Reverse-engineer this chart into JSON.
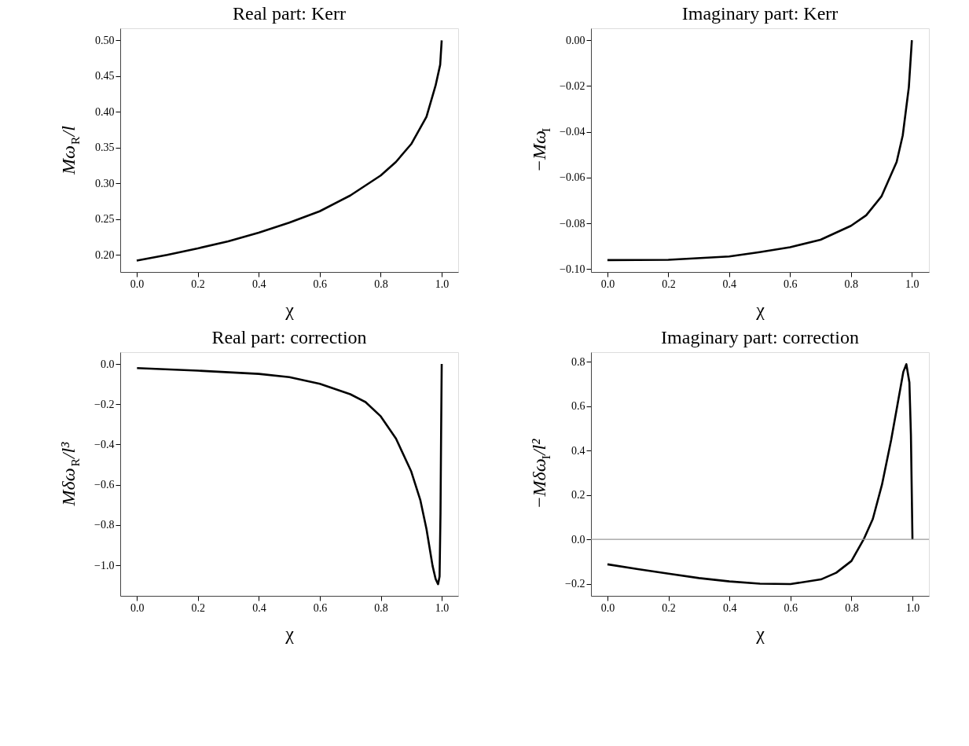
{
  "chart_data": [
    {
      "type": "line",
      "title": "Real part: Kerr",
      "xlabel": "χ",
      "ylabel": "Mω$_{R}$/l",
      "grid": false,
      "xlim": [
        -0.054,
        1.054
      ],
      "ylim": [
        0.176,
        0.517
      ],
      "xticks": [
        {
          "value": 0,
          "label": "0.0"
        },
        {
          "value": 0.2,
          "label": "0.2"
        },
        {
          "value": 0.4,
          "label": "0.4"
        },
        {
          "value": 0.6,
          "label": "0.6"
        },
        {
          "value": 0.8,
          "label": "0.8"
        },
        {
          "value": 1,
          "label": "1.0"
        }
      ],
      "yticks": [
        {
          "value": 0.2,
          "label": "0.20"
        },
        {
          "value": 0.25,
          "label": "0.25"
        },
        {
          "value": 0.3,
          "label": "0.30"
        },
        {
          "value": 0.35,
          "label": "0.35"
        },
        {
          "value": 0.4,
          "label": "0.40"
        },
        {
          "value": 0.45,
          "label": "0.45"
        },
        {
          "value": 0.5,
          "label": "0.50"
        }
      ],
      "series": [
        {
          "color": "#000000",
          "x": [
            0,
            0.1,
            0.2,
            0.3,
            0.4,
            0.5,
            0.6,
            0.7,
            0.8,
            0.85,
            0.9,
            0.95,
            0.98,
            0.995,
            1.0
          ],
          "values": [
            0.192,
            0.2,
            0.209,
            0.219,
            0.231,
            0.245,
            0.261,
            0.283,
            0.311,
            0.33,
            0.355,
            0.393,
            0.437,
            0.466,
            0.5
          ]
        }
      ]
    },
    {
      "type": "line",
      "title": "Imaginary part: Kerr",
      "xlabel": "χ",
      "ylabel": "−Mω$_{I}$",
      "grid": false,
      "xlim": [
        -0.054,
        1.056
      ],
      "ylim": [
        -0.1013,
        0.0052
      ],
      "xticks": [
        {
          "value": 0,
          "label": "0.0"
        },
        {
          "value": 0.2,
          "label": "0.2"
        },
        {
          "value": 0.4,
          "label": "0.4"
        },
        {
          "value": 0.6,
          "label": "0.6"
        },
        {
          "value": 0.8,
          "label": "0.8"
        },
        {
          "value": 1,
          "label": "1.0"
        }
      ],
      "yticks": [
        {
          "value": -0.1,
          "label": "−0.10"
        },
        {
          "value": -0.08,
          "label": "−0.08"
        },
        {
          "value": -0.06,
          "label": "−0.06"
        },
        {
          "value": -0.04,
          "label": "−0.04"
        },
        {
          "value": -0.02,
          "label": "−0.02"
        },
        {
          "value": 0,
          "label": "0.00"
        }
      ],
      "series": [
        {
          "color": "#000000",
          "x": [
            0,
            0.2,
            0.4,
            0.5,
            0.6,
            0.7,
            0.8,
            0.85,
            0.9,
            0.95,
            0.97,
            0.99,
            1.0
          ],
          "values": [
            -0.0961,
            -0.096,
            -0.0945,
            -0.0926,
            -0.0905,
            -0.0872,
            -0.0811,
            -0.0765,
            -0.0683,
            -0.0532,
            -0.0416,
            -0.0206,
            0
          ]
        }
      ]
    },
    {
      "type": "line",
      "title": "Real part: correction",
      "xlabel": "χ",
      "ylabel": "Mδω$_{R}$/l³",
      "grid": false,
      "xlim": [
        -0.055,
        1.054
      ],
      "ylim": [
        -1.152,
        0.059
      ],
      "xticks": [
        {
          "value": 0,
          "label": "0.0"
        },
        {
          "value": 0.2,
          "label": "0.2"
        },
        {
          "value": 0.4,
          "label": "0.4"
        },
        {
          "value": 0.6,
          "label": "0.6"
        },
        {
          "value": 0.8,
          "label": "0.8"
        },
        {
          "value": 1,
          "label": "1.0"
        }
      ],
      "yticks": [
        {
          "value": -1,
          "label": "−1.0"
        },
        {
          "value": -0.8,
          "label": "−0.8"
        },
        {
          "value": -0.6,
          "label": "−0.6"
        },
        {
          "value": -0.4,
          "label": "−0.4"
        },
        {
          "value": -0.2,
          "label": "−0.2"
        },
        {
          "value": 0,
          "label": "0.0"
        }
      ],
      "series": [
        {
          "color": "#000000",
          "x": [
            0,
            0.2,
            0.4,
            0.5,
            0.6,
            0.7,
            0.75,
            0.8,
            0.85,
            0.9,
            0.93,
            0.95,
            0.97,
            0.98,
            0.988,
            0.993,
            0.996,
            0.998,
            1.0
          ],
          "values": [
            -0.02,
            -0.033,
            -0.049,
            -0.065,
            -0.098,
            -0.15,
            -0.189,
            -0.26,
            -0.371,
            -0.534,
            -0.677,
            -0.82,
            -1.003,
            -1.068,
            -1.094,
            -1.055,
            -0.742,
            -0.352,
            0
          ]
        }
      ]
    },
    {
      "type": "line",
      "title": "Imaginary part: correction",
      "xlabel": "χ",
      "ylabel": "−Mδω$_{I}$/l²",
      "grid": false,
      "xlim": [
        -0.054,
        1.054
      ],
      "ylim": [
        -0.254,
        0.843
      ],
      "xticks": [
        {
          "value": 0,
          "label": "0.0"
        },
        {
          "value": 0.2,
          "label": "0.2"
        },
        {
          "value": 0.4,
          "label": "0.4"
        },
        {
          "value": 0.6,
          "label": "0.6"
        },
        {
          "value": 0.8,
          "label": "0.8"
        },
        {
          "value": 1,
          "label": "1.0"
        }
      ],
      "yticks": [
        {
          "value": -0.2,
          "label": "−0.2"
        },
        {
          "value": 0,
          "label": "0.0"
        },
        {
          "value": 0.2,
          "label": "0.2"
        },
        {
          "value": 0.4,
          "label": "0.4"
        },
        {
          "value": 0.6,
          "label": "0.6"
        },
        {
          "value": 0.8,
          "label": "0.8"
        }
      ],
      "ref_lines": [
        {
          "axis": "y",
          "value": 0,
          "color": "#999999"
        }
      ],
      "series": [
        {
          "color": "#000000",
          "x": [
            0,
            0.1,
            0.2,
            0.3,
            0.4,
            0.5,
            0.6,
            0.7,
            0.75,
            0.8,
            0.84,
            0.87,
            0.9,
            0.93,
            0.95,
            0.97,
            0.98,
            0.99,
            0.995,
            1.0
          ],
          "values": [
            -0.112,
            -0.134,
            -0.154,
            -0.174,
            -0.189,
            -0.199,
            -0.201,
            -0.18,
            -0.15,
            -0.097,
            0.0,
            0.092,
            0.246,
            0.447,
            0.6,
            0.754,
            0.789,
            0.707,
            0.47,
            0.0
          ]
        }
      ]
    }
  ]
}
